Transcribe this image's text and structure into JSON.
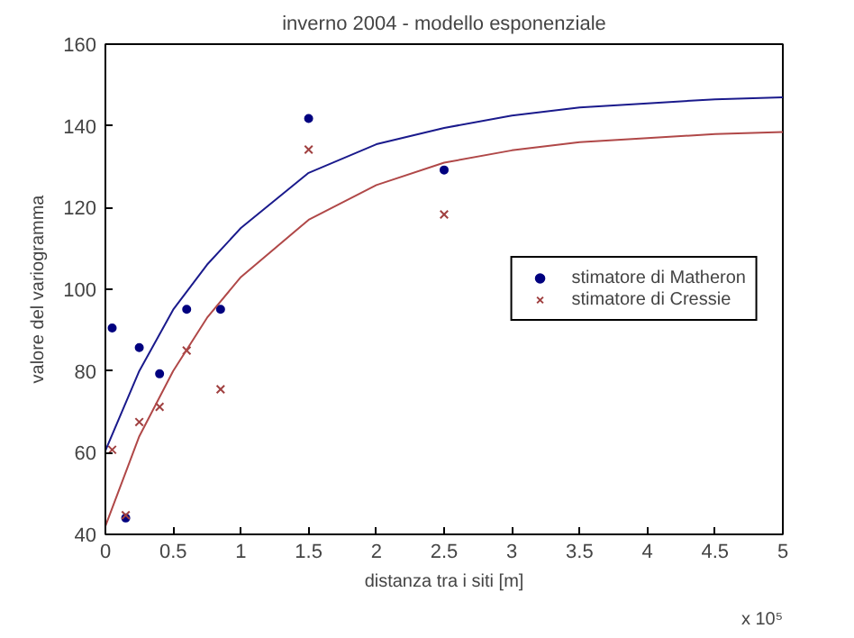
{
  "chart_data": {
    "type": "scatter",
    "title": "inverno 2004 - modello esponenziale",
    "xlabel": "distanza tra i siti [m]",
    "ylabel": "valore del variogramma",
    "xlim": [
      0,
      5
    ],
    "ylim": [
      40,
      160
    ],
    "xticks": [
      0,
      0.5,
      1,
      1.5,
      2,
      2.5,
      3,
      3.5,
      4,
      4.5,
      5
    ],
    "yticks": [
      40,
      60,
      80,
      100,
      120,
      140,
      160
    ],
    "annotations": [
      "x 10⁵"
    ],
    "grid": false,
    "legend": "right",
    "series": [
      {
        "name": "stimatore di Matheron",
        "marker": "circle",
        "color": "#00007f",
        "x": [
          0.05,
          0.15,
          0.25,
          0.4,
          0.6,
          0.85,
          1.5,
          2.5
        ],
        "values": [
          90.5,
          44,
          85.7,
          79.3,
          95.1,
          95.1,
          141.8,
          129.2
        ]
      },
      {
        "name": "stimatore di Cressie",
        "marker": "cross",
        "color": "#a04040",
        "x": [
          0.05,
          0.15,
          0.25,
          0.4,
          0.6,
          0.85,
          1.5,
          2.5
        ],
        "values": [
          60.7,
          44.7,
          67.5,
          71.2,
          85,
          75.5,
          134.2,
          118.3
        ]
      },
      {
        "type": "line",
        "color": "#1a1a8c",
        "x": [
          0,
          0.25,
          0.5,
          0.75,
          1,
          1.5,
          2,
          2.5,
          3,
          3.5,
          4,
          4.5,
          5
        ],
        "values": [
          60.5,
          80,
          95,
          106,
          115,
          128.5,
          135.5,
          139.5,
          142.5,
          144.5,
          145.5,
          146.5,
          147
        ]
      },
      {
        "type": "line",
        "color": "#b04848",
        "x": [
          0,
          0.25,
          0.5,
          0.75,
          1,
          1.5,
          2,
          2.5,
          3,
          3.5,
          4,
          4.5,
          5
        ],
        "values": [
          42,
          64,
          80,
          93,
          103,
          117,
          125.5,
          131,
          134,
          136,
          137,
          138,
          138.5
        ]
      }
    ]
  }
}
